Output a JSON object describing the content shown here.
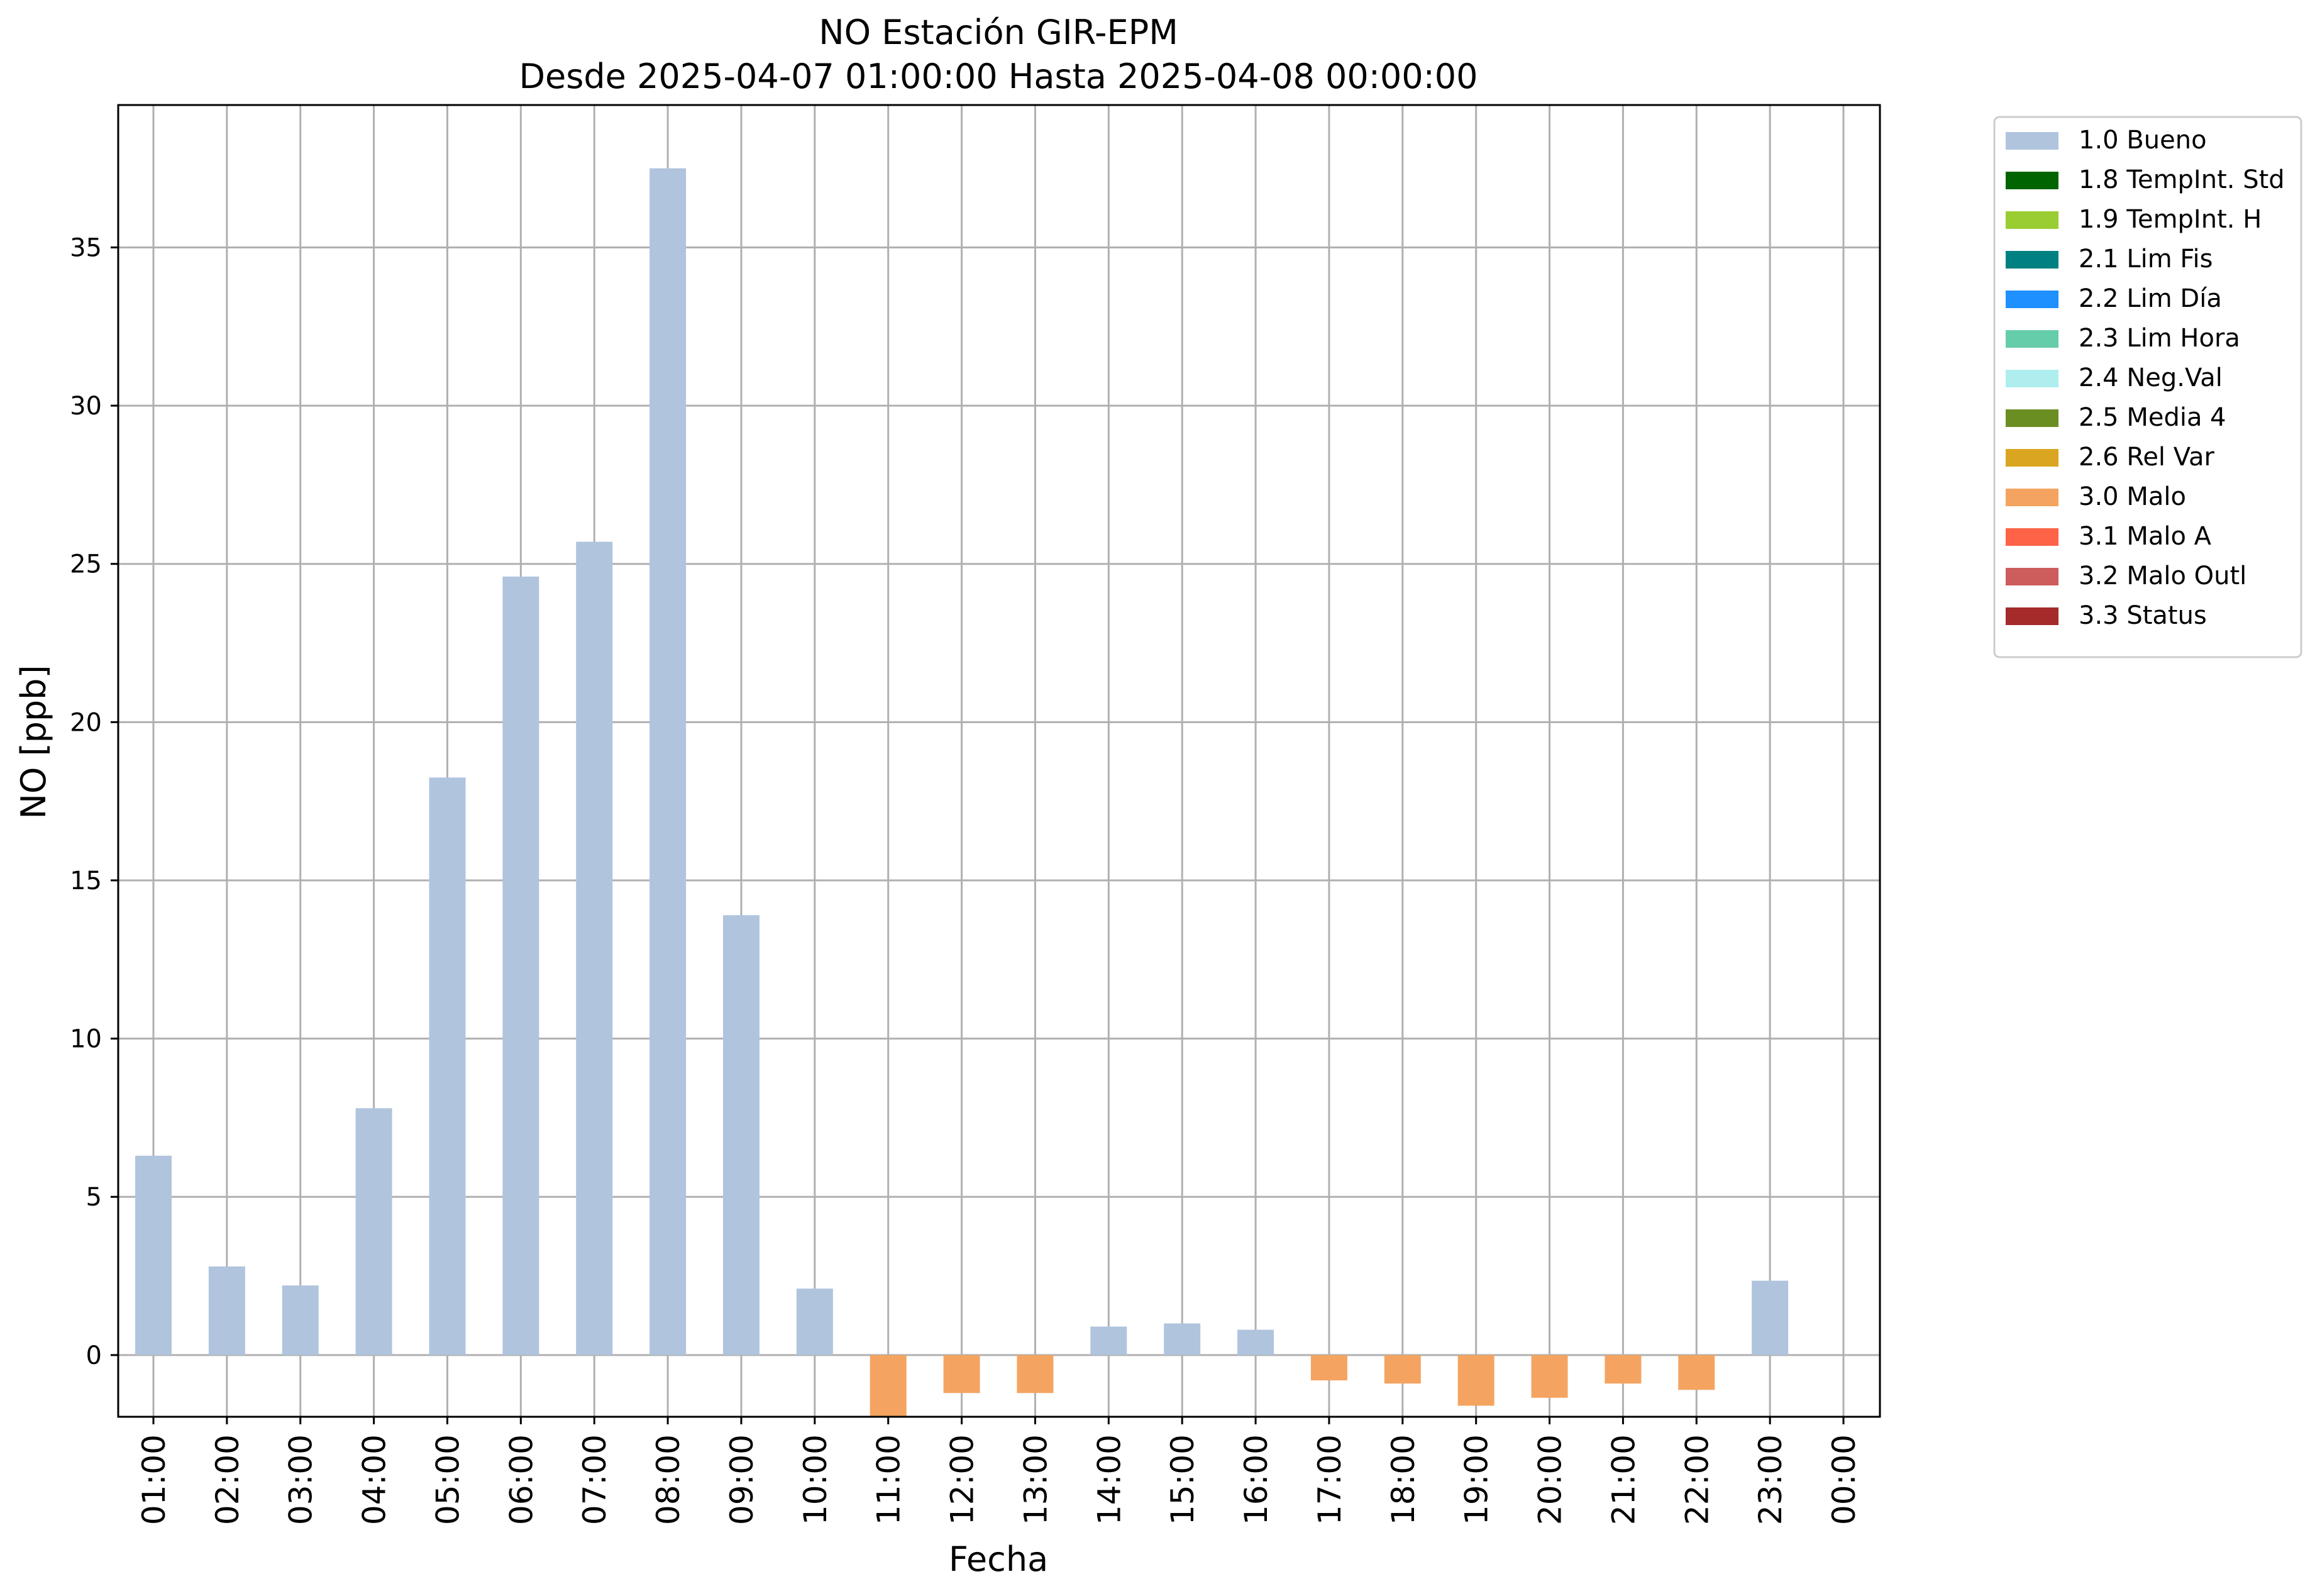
{
  "chart_data": {
    "type": "bar",
    "title": "NO Estación GIR-EPM",
    "subtitle": "Desde 2025-04-07 01:00:00 Hasta 2025-04-08 00:00:00",
    "xlabel": "Fecha",
    "ylabel": "NO [ppb]",
    "ylim": [
      -1.95,
      39.5
    ],
    "yticks": [
      0,
      5,
      10,
      15,
      20,
      25,
      30,
      35
    ],
    "grid": true,
    "legend_placement": "outside-top-right",
    "categories": [
      "01:00",
      "02:00",
      "03:00",
      "04:00",
      "05:00",
      "06:00",
      "07:00",
      "08:00",
      "09:00",
      "10:00",
      "11:00",
      "12:00",
      "13:00",
      "14:00",
      "15:00",
      "16:00",
      "17:00",
      "18:00",
      "19:00",
      "20:00",
      "21:00",
      "22:00",
      "23:00",
      "00:00"
    ],
    "values": [
      6.3,
      2.8,
      2.2,
      7.8,
      18.25,
      24.6,
      25.7,
      37.5,
      13.9,
      2.1,
      -1.95,
      -1.2,
      -1.2,
      0.9,
      1.0,
      0.8,
      -0.8,
      -0.9,
      -1.6,
      -1.35,
      -0.9,
      -1.1,
      2.35,
      null
    ],
    "flags": [
      "1.0 Bueno",
      "1.0 Bueno",
      "1.0 Bueno",
      "1.0 Bueno",
      "1.0 Bueno",
      "1.0 Bueno",
      "1.0 Bueno",
      "1.0 Bueno",
      "1.0 Bueno",
      "1.0 Bueno",
      "3.0 Malo",
      "3.0 Malo",
      "3.0 Malo",
      "1.0 Bueno",
      "1.0 Bueno",
      "1.0 Bueno",
      "3.0 Malo",
      "3.0 Malo",
      "3.0 Malo",
      "3.0 Malo",
      "3.0 Malo",
      "3.0 Malo",
      "1.0 Bueno",
      null
    ],
    "legend": [
      {
        "label": "1.0 Bueno",
        "color": "#b0c4de"
      },
      {
        "label": "1.8 TempInt. Std",
        "color": "#006400"
      },
      {
        "label": "1.9 TempInt. H",
        "color": "#9acd32"
      },
      {
        "label": "2.1 Lim Fis",
        "color": "#008080"
      },
      {
        "label": "2.2 Lim Día",
        "color": "#1e90ff"
      },
      {
        "label": "2.3 Lim Hora",
        "color": "#66cdaa"
      },
      {
        "label": "2.4 Neg.Val",
        "color": "#afeeee"
      },
      {
        "label": "2.5 Media 4",
        "color": "#6b8e23"
      },
      {
        "label": "2.6 Rel Var",
        "color": "#daa520"
      },
      {
        "label": "3.0 Malo",
        "color": "#f4a460"
      },
      {
        "label": "3.1 Malo A",
        "color": "#ff6347"
      },
      {
        "label": "3.2 Malo Outl",
        "color": "#cd5c5c"
      },
      {
        "label": "3.3 Status",
        "color": "#a52a2a"
      }
    ]
  }
}
